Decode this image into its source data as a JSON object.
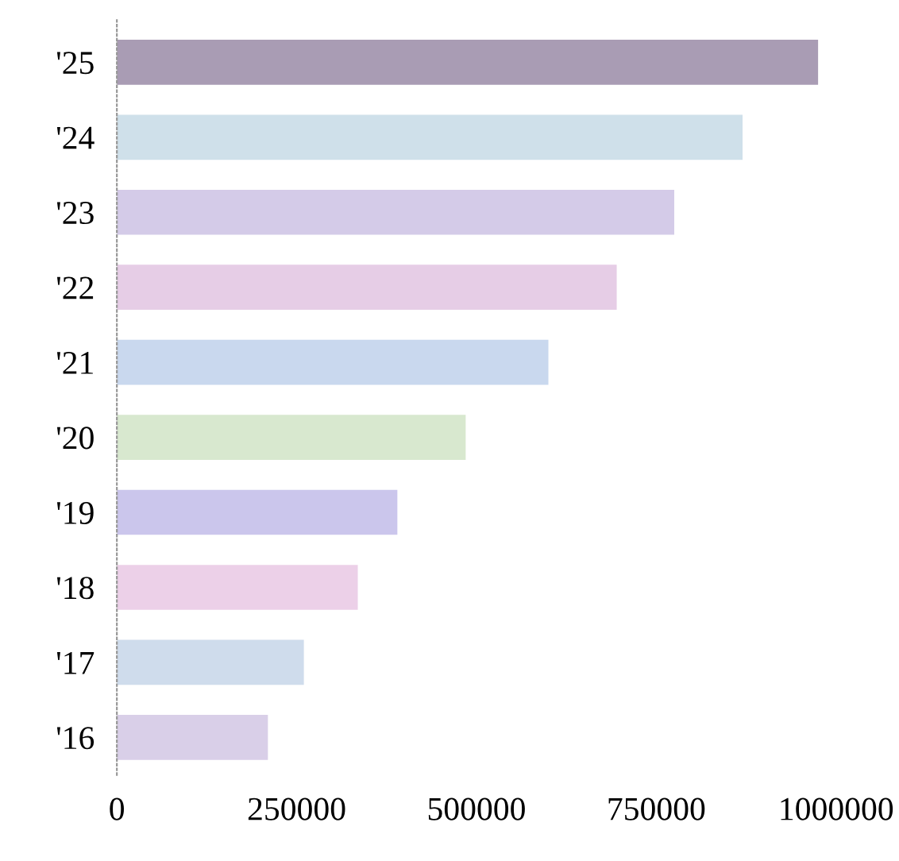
{
  "chart_data": {
    "type": "bar",
    "orientation": "horizontal",
    "categories": [
      "'25",
      "'24",
      "'23",
      "'22",
      "'21",
      "'20",
      "'19",
      "'18",
      "'17",
      "'16"
    ],
    "values": [
      975000,
      870000,
      775000,
      695000,
      600000,
      485000,
      390000,
      335000,
      260000,
      210000
    ],
    "colors": [
      "#a99cb4",
      "#cfe0ea",
      "#d4cbe8",
      "#e6cde6",
      "#c9d8ee",
      "#d8e8cf",
      "#cbc6ec",
      "#ecd0e8",
      "#cfdcec",
      "#d9cfe8"
    ],
    "xlim": [
      0,
      1000000
    ],
    "xticks": [
      0,
      250000,
      500000,
      750000,
      1000000
    ],
    "grid": false
  }
}
